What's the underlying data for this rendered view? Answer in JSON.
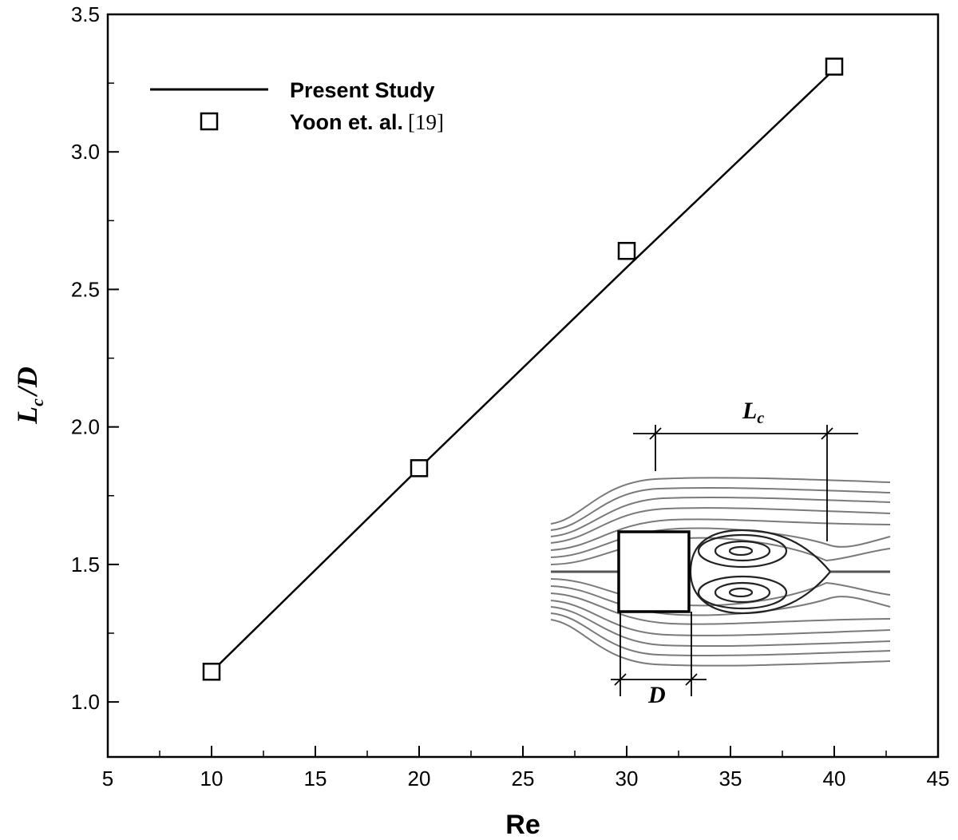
{
  "chart_data": {
    "type": "line",
    "xlabel": "Re",
    "ylabel": {
      "main": "L",
      "sub": "c",
      "suffix": "/D"
    },
    "xlim": [
      5,
      45
    ],
    "ylim": [
      0.8,
      3.5
    ],
    "x_ticks": [
      5,
      10,
      15,
      20,
      25,
      30,
      35,
      40,
      45
    ],
    "x_tick_labels": [
      "5",
      "10",
      "15",
      "20",
      "25",
      "30",
      "35",
      "40",
      "45"
    ],
    "y_ticks": [
      1.0,
      1.5,
      2.0,
      2.5,
      3.0,
      3.5
    ],
    "y_tick_labels": [
      "1.0",
      "1.5",
      "2.0",
      "2.5",
      "3.0",
      "3.5"
    ],
    "grid": false,
    "legend_position": "top-left",
    "series": [
      {
        "name": "Present Study",
        "style": "line",
        "color": "#000000",
        "x": [
          10,
          20,
          30,
          40
        ],
        "y": [
          1.11,
          1.85,
          2.58,
          3.3
        ]
      },
      {
        "name": "Yoon et. al.",
        "name_ref": "[19]",
        "style": "open-square-marker",
        "color": "#000000",
        "x": [
          10,
          20,
          30,
          40
        ],
        "y": [
          1.11,
          1.85,
          2.64,
          3.31
        ]
      }
    ],
    "inset": {
      "description_labels": {
        "length": "L",
        "length_sub": "c",
        "width": "D"
      }
    }
  }
}
